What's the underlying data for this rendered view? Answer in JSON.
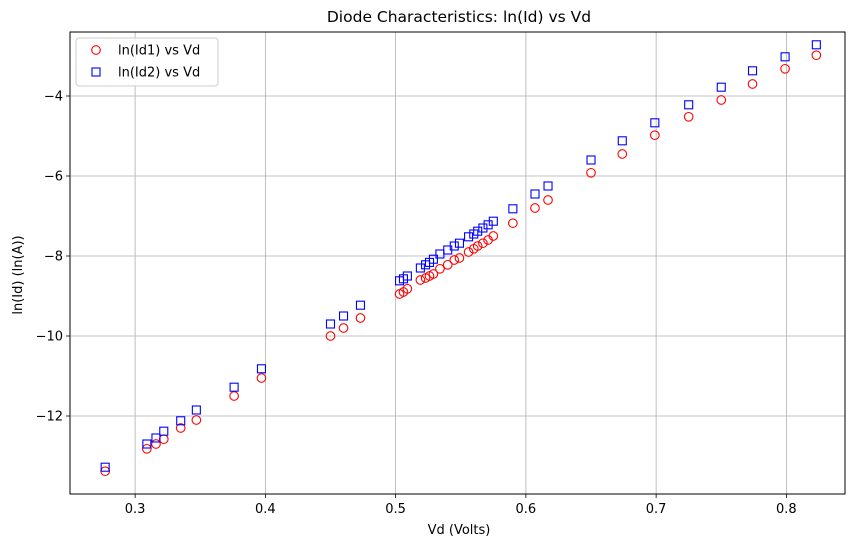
{
  "chart_data": {
    "type": "scatter",
    "title": "Diode Characteristics: ln(Id) vs Vd",
    "xlabel": "Vd (Volts)",
    "ylabel": "ln(Id) (ln(A))",
    "xlim": [
      0.25,
      0.845
    ],
    "ylim": [
      -13.95,
      -2.4
    ],
    "xticks": [
      0.3,
      0.4,
      0.5,
      0.6,
      0.7,
      0.8
    ],
    "xtick_labels": [
      "0.3",
      "0.4",
      "0.5",
      "0.6",
      "0.7",
      "0.8"
    ],
    "yticks": [
      -12,
      -10,
      -8,
      -6,
      -4
    ],
    "ytick_labels": [
      "−12",
      "−10",
      "−8",
      "−6",
      "−4"
    ],
    "grid": true,
    "legend_position": "upper-left",
    "series": [
      {
        "name": "ln(Id1) vs Vd",
        "marker": "circle",
        "color": "#ff0000",
        "x": [
          0.277,
          0.309,
          0.316,
          0.322,
          0.335,
          0.347,
          0.376,
          0.397,
          0.45,
          0.46,
          0.473,
          0.503,
          0.506,
          0.509,
          0.519,
          0.523,
          0.526,
          0.529,
          0.534,
          0.54,
          0.545,
          0.549,
          0.556,
          0.56,
          0.563,
          0.567,
          0.571,
          0.575,
          0.59,
          0.607,
          0.617,
          0.65,
          0.674,
          0.699,
          0.725,
          0.75,
          0.774,
          0.799,
          0.823
        ],
        "y": [
          -13.38,
          -12.82,
          -12.7,
          -12.58,
          -12.3,
          -12.1,
          -11.5,
          -11.05,
          -10.0,
          -9.8,
          -9.55,
          -8.95,
          -8.9,
          -8.82,
          -8.6,
          -8.55,
          -8.5,
          -8.45,
          -8.32,
          -8.22,
          -8.1,
          -8.05,
          -7.9,
          -7.82,
          -7.75,
          -7.68,
          -7.6,
          -7.5,
          -7.18,
          -6.8,
          -6.6,
          -5.92,
          -5.45,
          -4.98,
          -4.52,
          -4.1,
          -3.7,
          -3.32,
          -2.98
        ]
      },
      {
        "name": "ln(Id2) vs Vd",
        "marker": "square",
        "color": "#0000ff",
        "x": [
          0.277,
          0.309,
          0.316,
          0.322,
          0.335,
          0.347,
          0.376,
          0.397,
          0.45,
          0.46,
          0.473,
          0.503,
          0.506,
          0.509,
          0.519,
          0.523,
          0.526,
          0.529,
          0.534,
          0.54,
          0.545,
          0.549,
          0.556,
          0.56,
          0.563,
          0.567,
          0.571,
          0.575,
          0.59,
          0.607,
          0.617,
          0.65,
          0.674,
          0.699,
          0.725,
          0.75,
          0.774,
          0.799,
          0.823
        ],
        "y": [
          -13.28,
          -12.7,
          -12.55,
          -12.38,
          -12.12,
          -11.85,
          -11.28,
          -10.82,
          -9.7,
          -9.5,
          -9.23,
          -8.62,
          -8.57,
          -8.5,
          -8.3,
          -8.22,
          -8.16,
          -8.08,
          -7.95,
          -7.85,
          -7.75,
          -7.68,
          -7.52,
          -7.45,
          -7.38,
          -7.3,
          -7.22,
          -7.13,
          -6.82,
          -6.45,
          -6.25,
          -5.6,
          -5.12,
          -4.67,
          -4.22,
          -3.78,
          -3.37,
          -3.02,
          -2.72
        ]
      }
    ]
  }
}
